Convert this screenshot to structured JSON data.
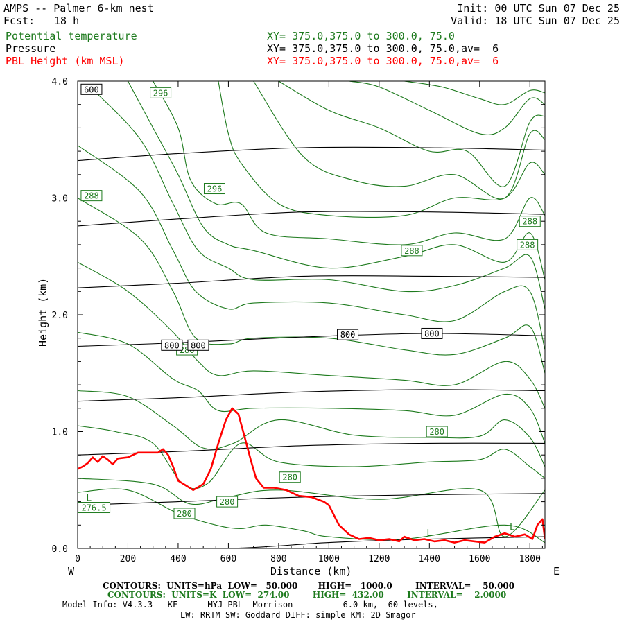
{
  "header": {
    "title": "AMPS -- Palmer 6-km nest",
    "fcst_label": "Fcst:",
    "fcst_value": "18 h",
    "init": "Init: 00 UTC Sun 07 Dec 25",
    "valid": "Valid: 18 UTC Sun 07 Dec 25",
    "fields": [
      {
        "name": "Potential temperature",
        "xy": "XY= 375.0,375.0 to 300.0, 75.0",
        "color": "#1d7a1d"
      },
      {
        "name": "Pressure",
        "xy": "XY= 375.0,375.0 to 300.0, 75.0,av=  6",
        "color": "#000000"
      },
      {
        "name": "PBL Height (km MSL)",
        "xy": "XY= 375.0,375.0 to 300.0, 75.0,av=  6",
        "color": "#ff0000"
      }
    ]
  },
  "footer": {
    "pressure_contours": "CONTOURS:  UNITS=hPa  LOW=   50.000       HIGH=   1000.0        INTERVAL=    50.000",
    "theta_contours": "CONTOURS:  UNITS=K  LOW=  274.00        HIGH=  432.00        INTERVAL=    2.0000",
    "model_info_1": "Model Info: V4.3.3   KF      MYJ PBL  Morrison          6.0 km,  60 levels,",
    "model_info_2": "LW: RRTM SW: Goddard DIFF: simple KM: 2D Smagor"
  },
  "chart_data": {
    "type": "cross-section",
    "xlabel": "Distance (km)",
    "ylabel": "Height (km)",
    "xlim": [
      0,
      1860
    ],
    "ylim": [
      0,
      4.0
    ],
    "x_ticks": [
      0,
      200,
      400,
      600,
      800,
      1000,
      1200,
      1400,
      1600,
      1800
    ],
    "x_tick_labels": [
      "0",
      "200",
      "400",
      "600",
      "800",
      "1000",
      "1200",
      "1400",
      "1600",
      "1800"
    ],
    "y_ticks": [
      0,
      1,
      2,
      3,
      4
    ],
    "y_tick_labels": [
      "0.0",
      "1.0",
      "2.0",
      "3.0",
      "4.0"
    ],
    "west_label": "W",
    "east_label": "E",
    "pressure_color": "#000000",
    "theta_color": "#1d7a1d",
    "pbl_color": "#ff0000",
    "pressure_contours": [
      {
        "x": [
          0,
          400,
          900,
          1400,
          1860
        ],
        "y": [
          3.32,
          3.38,
          3.43,
          3.43,
          3.41
        ]
      },
      {
        "x": [
          0,
          400,
          900,
          1400,
          1860
        ],
        "y": [
          2.76,
          2.82,
          2.88,
          2.88,
          2.86
        ]
      },
      {
        "x": [
          0,
          400,
          900,
          1400,
          1860
        ],
        "y": [
          2.23,
          2.27,
          2.33,
          2.33,
          2.32
        ]
      },
      {
        "x": [
          0,
          400,
          900,
          1400,
          1860
        ],
        "y": [
          1.73,
          1.76,
          1.81,
          1.84,
          1.82
        ]
      },
      {
        "x": [
          0,
          400,
          900,
          1400,
          1860
        ],
        "y": [
          1.26,
          1.29,
          1.34,
          1.36,
          1.35
        ]
      },
      {
        "x": [
          0,
          400,
          900,
          1400,
          1860
        ],
        "y": [
          0.8,
          0.83,
          0.88,
          0.9,
          0.9
        ]
      },
      {
        "x": [
          0,
          400,
          900,
          1400,
          1860
        ],
        "y": [
          0.37,
          0.4,
          0.44,
          0.46,
          0.47
        ]
      },
      {
        "x": [
          0,
          600,
          1000,
          1400,
          1860
        ],
        "y": [
          0.0,
          0.0,
          0.05,
          0.08,
          0.1
        ]
      }
    ],
    "pressure_labels": [
      {
        "text": "600",
        "x": 55,
        "y": 3.93
      },
      {
        "text": "800",
        "x": 375,
        "y": 1.74
      },
      {
        "text": "800",
        "x": 480,
        "y": 1.74
      },
      {
        "text": "800",
        "x": 1075,
        "y": 1.83
      },
      {
        "text": "800",
        "x": 1410,
        "y": 1.84
      }
    ],
    "theta_contours": [
      {
        "x": [
          0,
          200,
          400,
          550,
          650,
          750,
          900,
          1000,
          1300,
          1700,
          1860
        ],
        "y": [
          0.48,
          0.5,
          0.3,
          0.2,
          0.17,
          0.2,
          0.15,
          0.1,
          0.08,
          0.2,
          0.05
        ]
      },
      {
        "x": [
          0,
          300,
          450,
          600,
          800,
          1200,
          1600,
          1700,
          1860
        ],
        "y": [
          0.6,
          0.55,
          0.38,
          0.44,
          0.5,
          0.42,
          0.5,
          0.1,
          0.5
        ]
      },
      {
        "x": [
          0,
          150,
          300,
          420,
          520,
          650,
          800,
          1100,
          1400,
          1600,
          1700,
          1800,
          1860
        ],
        "y": [
          1.05,
          1.0,
          0.9,
          0.55,
          0.56,
          0.9,
          0.74,
          0.7,
          0.74,
          0.76,
          0.85,
          0.7,
          0.6
        ]
      },
      {
        "x": [
          0,
          200,
          380,
          500,
          620,
          800,
          1100,
          1400,
          1600,
          1700,
          1800,
          1860
        ],
        "y": [
          1.35,
          1.3,
          1.05,
          0.86,
          0.9,
          1.1,
          0.97,
          0.95,
          0.96,
          1.1,
          0.95,
          0.7
        ]
      },
      {
        "x": [
          0,
          200,
          380,
          480,
          560,
          700,
          1000,
          1300,
          1500,
          1700,
          1800,
          1860
        ],
        "y": [
          1.85,
          1.75,
          1.45,
          1.35,
          1.18,
          1.2,
          1.2,
          1.18,
          1.14,
          1.32,
          1.2,
          0.9
        ]
      },
      {
        "x": [
          0,
          200,
          380,
          480,
          560,
          700,
          1000,
          1300,
          1500,
          1700,
          1800,
          1860
        ],
        "y": [
          2.45,
          2.2,
          1.85,
          1.6,
          1.48,
          1.52,
          1.48,
          1.44,
          1.4,
          1.6,
          1.45,
          1.2
        ]
      },
      {
        "x": [
          0,
          250,
          380,
          470,
          600,
          700,
          1000,
          1300,
          1500,
          1700,
          1800,
          1860
        ],
        "y": [
          3.0,
          2.65,
          2.2,
          1.8,
          1.75,
          1.8,
          1.8,
          1.7,
          1.66,
          1.8,
          1.9,
          1.5
        ]
      },
      {
        "x": [
          0,
          250,
          380,
          470,
          600,
          700,
          1000,
          1300,
          1500,
          1700,
          1800,
          1860
        ],
        "y": [
          3.45,
          3.05,
          2.55,
          2.2,
          2.05,
          2.1,
          2.1,
          2.0,
          1.95,
          2.2,
          2.2,
          1.7
        ]
      },
      {
        "x": [
          50,
          250,
          380,
          480,
          600,
          700,
          1000,
          1300,
          1500,
          1700,
          1800,
          1860
        ],
        "y": [
          3.95,
          3.5,
          2.95,
          2.55,
          2.4,
          2.3,
          2.3,
          2.2,
          2.25,
          2.4,
          2.5,
          2.05
        ]
      },
      {
        "x": [
          200,
          300,
          400,
          500,
          600,
          700,
          1000,
          1300,
          1500,
          1700,
          1800,
          1860
        ],
        "y": [
          4.0,
          3.6,
          3.2,
          2.75,
          2.6,
          2.55,
          2.4,
          2.5,
          2.6,
          2.45,
          2.7,
          2.3
        ]
      },
      {
        "x": [
          300,
          400,
          450,
          550,
          650,
          750,
          1000,
          1300,
          1500,
          1700,
          1800,
          1860
        ],
        "y": [
          4.0,
          3.6,
          3.15,
          2.95,
          2.95,
          2.7,
          2.65,
          2.6,
          2.7,
          2.65,
          3.0,
          2.85
        ]
      },
      {
        "x": [
          560,
          600,
          650,
          800,
          1000,
          1300,
          1500,
          1700,
          1800,
          1860
        ],
        "y": [
          4.0,
          3.55,
          3.3,
          2.95,
          2.85,
          2.85,
          3.0,
          3.0,
          3.3,
          3.2
        ]
      },
      {
        "x": [
          700,
          900,
          1100,
          1300,
          1500,
          1700,
          1800,
          1860
        ],
        "y": [
          4.0,
          3.35,
          3.15,
          3.1,
          3.2,
          3.0,
          3.55,
          3.5
        ]
      },
      {
        "x": [
          800,
          1000,
          1200,
          1400,
          1550,
          1700,
          1800,
          1860
        ],
        "y": [
          4.0,
          3.75,
          3.6,
          3.4,
          3.4,
          3.1,
          3.65,
          3.7
        ]
      },
      {
        "x": [
          1080,
          1200,
          1400,
          1600,
          1700,
          1800,
          1860
        ],
        "y": [
          4.0,
          3.95,
          3.75,
          3.55,
          3.6,
          3.85,
          3.8
        ]
      },
      {
        "x": [
          1300,
          1450,
          1600,
          1700,
          1800,
          1860
        ],
        "y": [
          4.0,
          3.95,
          3.85,
          3.8,
          3.92,
          3.9
        ]
      }
    ],
    "theta_labels": [
      {
        "text": "296",
        "x": 330,
        "y": 3.9
      },
      {
        "text": "296",
        "x": 545,
        "y": 3.08
      },
      {
        "text": "288",
        "x": 55,
        "y": 3.02
      },
      {
        "text": "288",
        "x": 1330,
        "y": 2.55
      },
      {
        "text": "288",
        "x": 1800,
        "y": 2.8
      },
      {
        "text": "288",
        "x": 1790,
        "y": 2.6
      },
      {
        "text": "280",
        "x": 435,
        "y": 1.7
      },
      {
        "text": "280",
        "x": 1430,
        "y": 1.0
      },
      {
        "text": "280",
        "x": 845,
        "y": 0.61
      },
      {
        "text": "280",
        "x": 595,
        "y": 0.4
      },
      {
        "text": "280",
        "x": 425,
        "y": 0.3
      },
      {
        "text": "276.5",
        "x": 65,
        "y": 0.35
      }
    ],
    "low_labels": [
      {
        "text": "L",
        "x": 45,
        "y": 0.43
      },
      {
        "text": "L",
        "x": 1400,
        "y": 0.13
      },
      {
        "text": "L",
        "x": 1730,
        "y": 0.18
      }
    ],
    "pbl": {
      "x": [
        0,
        20,
        40,
        60,
        80,
        100,
        120,
        140,
        160,
        200,
        240,
        280,
        320,
        340,
        360,
        380,
        400,
        430,
        460,
        500,
        530,
        560,
        590,
        615,
        640,
        665,
        690,
        710,
        740,
        780,
        830,
        880,
        930,
        980,
        1000,
        1040,
        1080,
        1120,
        1160,
        1200,
        1240,
        1280,
        1300,
        1340,
        1380,
        1420,
        1460,
        1500,
        1540,
        1580,
        1620,
        1660,
        1700,
        1740,
        1780,
        1810,
        1830,
        1850,
        1860
      ],
      "y": [
        0.68,
        0.7,
        0.73,
        0.78,
        0.74,
        0.79,
        0.76,
        0.72,
        0.77,
        0.78,
        0.82,
        0.82,
        0.82,
        0.85,
        0.8,
        0.7,
        0.58,
        0.54,
        0.5,
        0.55,
        0.68,
        0.9,
        1.1,
        1.2,
        1.15,
        0.95,
        0.75,
        0.6,
        0.52,
        0.52,
        0.5,
        0.45,
        0.44,
        0.4,
        0.37,
        0.2,
        0.12,
        0.08,
        0.09,
        0.07,
        0.08,
        0.06,
        0.1,
        0.07,
        0.08,
        0.06,
        0.07,
        0.05,
        0.07,
        0.06,
        0.05,
        0.1,
        0.13,
        0.1,
        0.12,
        0.08,
        0.2,
        0.25,
        0.08
      ]
    }
  }
}
